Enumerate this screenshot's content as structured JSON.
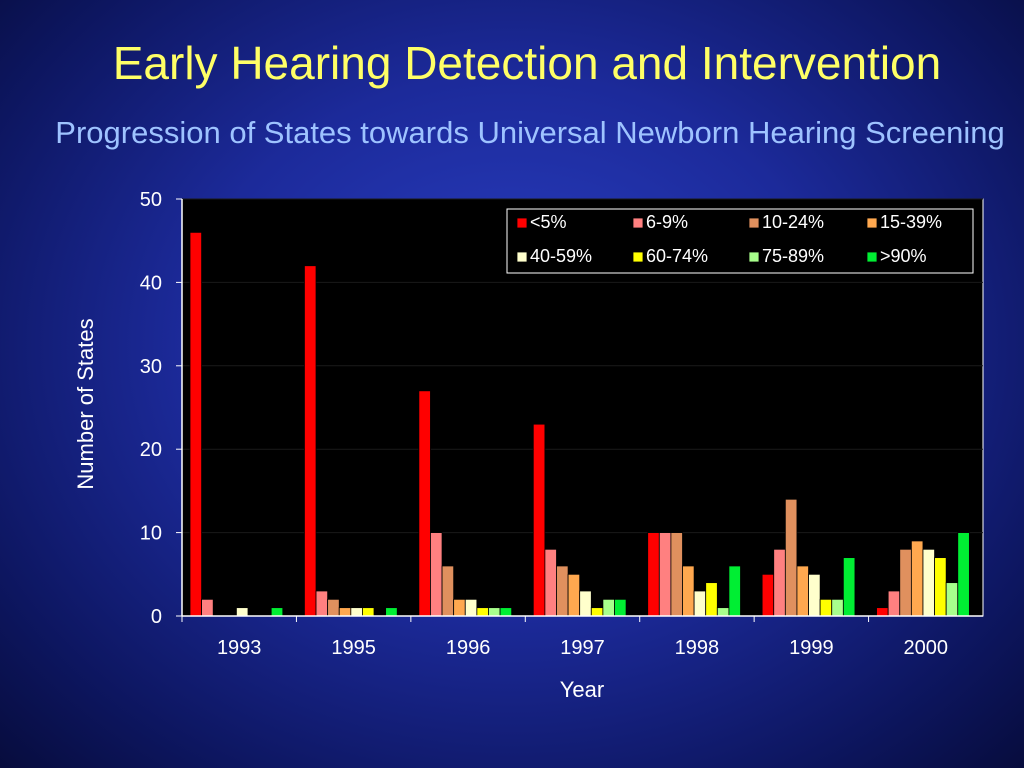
{
  "slide": {
    "title": "Early Hearing Detection and Intervention",
    "subtitle": "Progression of States towards Universal Newborn Hearing Screening"
  },
  "colors": {
    "plot_background": "#000000",
    "axis": "#ffffff",
    "gridline": "#1a1a1a"
  },
  "chart_data": {
    "type": "bar",
    "xlabel": "Year",
    "ylabel": "Number of States",
    "ylim": [
      0,
      50
    ],
    "yticks": [
      0,
      10,
      20,
      30,
      40,
      50
    ],
    "grid": true,
    "legend_position": "top-right",
    "categories": [
      "1993",
      "1995",
      "1996",
      "1997",
      "1998",
      "1999",
      "2000"
    ],
    "series": [
      {
        "name": "<5%",
        "color": "#ff0000",
        "values": [
          46,
          42,
          27,
          23,
          10,
          5,
          1
        ]
      },
      {
        "name": "6-9%",
        "color": "#ff8080",
        "values": [
          2,
          3,
          10,
          8,
          10,
          8,
          3
        ]
      },
      {
        "name": "10-24%",
        "color": "#e0905e",
        "values": [
          0,
          2,
          6,
          6,
          10,
          14,
          8
        ]
      },
      {
        "name": "15-39%",
        "color": "#ffa84f",
        "values": [
          0,
          1,
          2,
          5,
          6,
          6,
          9
        ]
      },
      {
        "name": "40-59%",
        "color": "#ffffcc",
        "values": [
          1,
          1,
          2,
          3,
          3,
          5,
          8
        ]
      },
      {
        "name": "60-74%",
        "color": "#ffff00",
        "values": [
          0,
          1,
          1,
          1,
          4,
          2,
          7
        ]
      },
      {
        "name": "75-89%",
        "color": "#a8ff8c",
        "values": [
          0,
          0,
          1,
          2,
          1,
          2,
          4
        ]
      },
      {
        "name": ">90%",
        "color": "#00ee33",
        "values": [
          1,
          1,
          1,
          2,
          6,
          7,
          10
        ]
      }
    ]
  }
}
